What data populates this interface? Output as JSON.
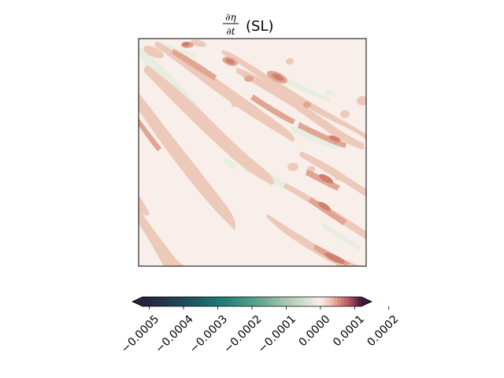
{
  "chart_data": {
    "type": "heatmap",
    "title": "∂η/∂t (SL)",
    "title_parts": {
      "numerator": "∂η",
      "denominator": "∂t",
      "suffix": "(SL)"
    },
    "xlabel": "",
    "ylabel": "",
    "axes_ticks_visible": false,
    "colorbar": {
      "orientation": "horizontal",
      "placement": "below",
      "extend": "both",
      "range": [
        -0.00052,
        0.00012
      ],
      "ticks": [
        -0.0005,
        -0.0004,
        -0.0003,
        -0.0002,
        -0.0001,
        0.0,
        0.0001,
        0.0002
      ],
      "tick_labels": [
        "−0.0005",
        "−0.0004",
        "−0.0003",
        "−0.0002",
        "−0.0001",
        "0.0000",
        "0.0001",
        "0.0002"
      ],
      "tick_label_rotation_deg": 45,
      "colormap": "diverging-teal-to-maroon",
      "color_stops": [
        {
          "value": -0.00052,
          "color": "#2a1e3f"
        },
        {
          "value": -0.0004,
          "color": "#1e4a5c"
        },
        {
          "value": -0.00028,
          "color": "#1f8079"
        },
        {
          "value": -0.00018,
          "color": "#5fa68e"
        },
        {
          "value": -0.0001,
          "color": "#a9c8ae"
        },
        {
          "value": -3e-05,
          "color": "#dde6d8"
        },
        {
          "value": 0.0,
          "color": "#f8efe9"
        },
        {
          "value": 3e-05,
          "color": "#ecc3b3"
        },
        {
          "value": 6e-05,
          "color": "#d8806f"
        },
        {
          "value": 9e-05,
          "color": "#a64a61"
        },
        {
          "value": 0.00012,
          "color": "#3c1740"
        }
      ]
    },
    "field_description": "contour-filled field of mostly near-zero values with diagonal bands of small positive values running from upper-left to lower-right and faint negative streaks",
    "field_levels": [
      {
        "name": "background",
        "value": 0.0,
        "color": "#f8efea"
      },
      {
        "name": "weak-negative",
        "value": -2e-05,
        "color": "#e7eddf"
      },
      {
        "name": "weak-positive",
        "value": 2e-05,
        "color": "#ecc9b9"
      },
      {
        "name": "moderate-positive",
        "value": 4e-05,
        "color": "#e1a591"
      },
      {
        "name": "strong-positive",
        "value": 6e-05,
        "color": "#d07f6c"
      }
    ]
  }
}
